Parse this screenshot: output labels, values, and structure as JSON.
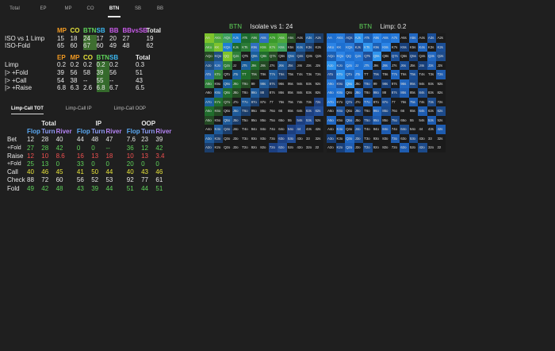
{
  "tabs": [
    "Total",
    "EP",
    "MP",
    "CO",
    "BTN",
    "SB",
    "BB"
  ],
  "active_tab": "BTN",
  "colors": {
    "background": "#1f1f1f",
    "orange": "#f29a22",
    "yellow": "#e8e53b",
    "green": "#5fd35a",
    "blue": "#3cb9f2",
    "purple": "#c95bea",
    "dark_green": "#3e6e30",
    "red": "#f05050",
    "flop_color": "#5aa9f5",
    "turn_color": "#8c9cf5",
    "river_color": "#b484f5"
  },
  "summary": {
    "headers1": [
      "MP",
      "CO",
      "BTN",
      "SB",
      "BB",
      "BBvsSB",
      "Total"
    ],
    "rows1": [
      {
        "label": "ISO vs 1 Limp",
        "values": [
          "15",
          "18",
          "24",
          "17",
          "20",
          "27",
          "19"
        ]
      },
      {
        "label": "ISO-Fold",
        "values": [
          "65",
          "60",
          "67",
          "60",
          "49",
          "48",
          "62"
        ]
      }
    ],
    "headers2": [
      "EP",
      "MP",
      "CO",
      "BTN",
      "SB",
      "Total"
    ],
    "rows2": [
      {
        "label": "Limp",
        "values": [
          "0.2",
          "0.2",
          "0.2",
          "0.2",
          "0.2",
          "0.3"
        ]
      },
      {
        "label": "  |> +Fold",
        "values": [
          "39",
          "56",
          "58",
          "39",
          "56",
          "51"
        ]
      },
      {
        "label": "  |> +Call",
        "values": [
          "54",
          "38",
          "--",
          "55",
          "--",
          "43"
        ]
      },
      {
        "label": "  |> +Raise",
        "values": [
          "6.8",
          "6.3",
          "2.6",
          "6.8",
          "6.7",
          "6.5"
        ]
      }
    ]
  },
  "subtabs": [
    "Limp-Call TOT",
    "Limp-Call IP",
    "Limp-Call OOP"
  ],
  "active_subtab": "Limp-Call TOT",
  "stats": {
    "groups": [
      "Total",
      "IP",
      "OOP"
    ],
    "streets": [
      "Flop",
      "Turn",
      "River"
    ],
    "rows": [
      {
        "label": "Bet",
        "values": [
          "12",
          "28",
          "40",
          "44",
          "48",
          "47",
          "7.6",
          "23",
          "39"
        ],
        "color": "#e8e8e8"
      },
      {
        "label": "  +Fold",
        "values": [
          "27",
          "28",
          "42",
          "0",
          "0",
          "--",
          "36",
          "12",
          "42"
        ],
        "color": "#5fd35a"
      },
      {
        "label": "Raise",
        "values": [
          "12",
          "10",
          "8.6",
          "16",
          "13",
          "18",
          "10",
          "13",
          "3.4"
        ],
        "color": "#f05050"
      },
      {
        "label": "  +Fold",
        "values": [
          "25",
          "13",
          "0",
          "33",
          "0",
          "0",
          "20",
          "0",
          "0"
        ],
        "color": "#5fd35a"
      },
      {
        "label": "Call",
        "values": [
          "40",
          "46",
          "45",
          "41",
          "50",
          "44",
          "40",
          "43",
          "46"
        ],
        "color": "#e8e53b"
      },
      {
        "label": "Check",
        "values": [
          "88",
          "72",
          "60",
          "56",
          "52",
          "53",
          "92",
          "77",
          "61"
        ],
        "color": "#e8e8e8"
      },
      {
        "label": "Fold",
        "values": [
          "49",
          "42",
          "48",
          "43",
          "39",
          "44",
          "51",
          "44",
          "51"
        ],
        "color": "#5fd35a"
      }
    ]
  },
  "left_grid": {
    "title_pos": "BTN",
    "title_text": "Isolate vs 1:  24"
  },
  "right_grid": {
    "title_pos": "BTN",
    "title_text": "Limp:  0.2"
  },
  "ranks": [
    "A",
    "K",
    "Q",
    "J",
    "T",
    "9",
    "8",
    "7",
    "6",
    "5",
    "4",
    "3",
    "2"
  ]
}
